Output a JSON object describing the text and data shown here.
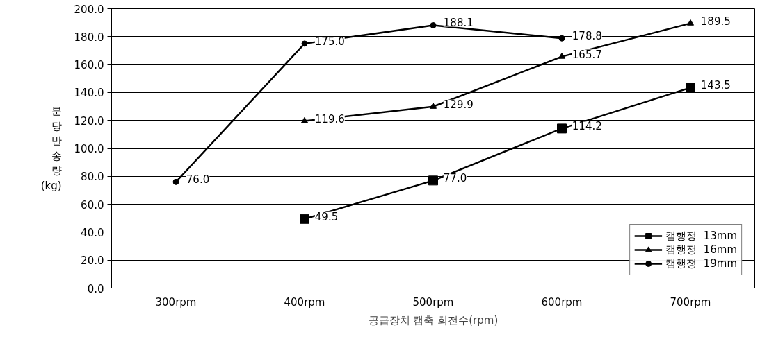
{
  "chart_data": {
    "type": "line",
    "xlabel": "공급장치 캠축 회전수(rpm)",
    "ylabel": "분당반송량(kg)",
    "categories": [
      "300rpm",
      "400rpm",
      "500rpm",
      "600rpm",
      "700rpm"
    ],
    "ylim": [
      0,
      200
    ],
    "yticks": [
      {
        "value": 0,
        "label": "0.0"
      },
      {
        "value": 20,
        "label": "20.0"
      },
      {
        "value": 40,
        "label": "40.0"
      },
      {
        "value": 60,
        "label": "60.0"
      },
      {
        "value": 80,
        "label": "80.0"
      },
      {
        "value": 100,
        "label": "100.0"
      },
      {
        "value": 120,
        "label": "120.0"
      },
      {
        "value": 140,
        "label": "140.0"
      },
      {
        "value": 160,
        "label": "160.0"
      },
      {
        "value": 180,
        "label": "180.0"
      },
      {
        "value": 200,
        "label": "200.0"
      }
    ],
    "grid": "y",
    "legend": "bottom right",
    "series": [
      {
        "name": "캠행정  13mm",
        "color": "#000000",
        "marker": "square",
        "values": [
          null,
          49.5,
          77.0,
          114.2,
          143.5
        ],
        "value_labels": [
          null,
          "49.5",
          "77.0",
          "114.2",
          "143.5"
        ]
      },
      {
        "name": "캠행정  16mm",
        "color": "#000000",
        "marker": "triangle",
        "values": [
          null,
          119.6,
          129.9,
          165.7,
          189.5
        ],
        "value_labels": [
          null,
          "119.6",
          "129.9",
          "165.7",
          "189.5"
        ]
      },
      {
        "name": "캠행정  19mm",
        "color": "#000000",
        "marker": "circle",
        "values": [
          76.0,
          175.0,
          188.1,
          178.8,
          null
        ],
        "value_labels": [
          "76.0",
          "175.0",
          "188.1",
          "178.8",
          null
        ]
      }
    ]
  }
}
